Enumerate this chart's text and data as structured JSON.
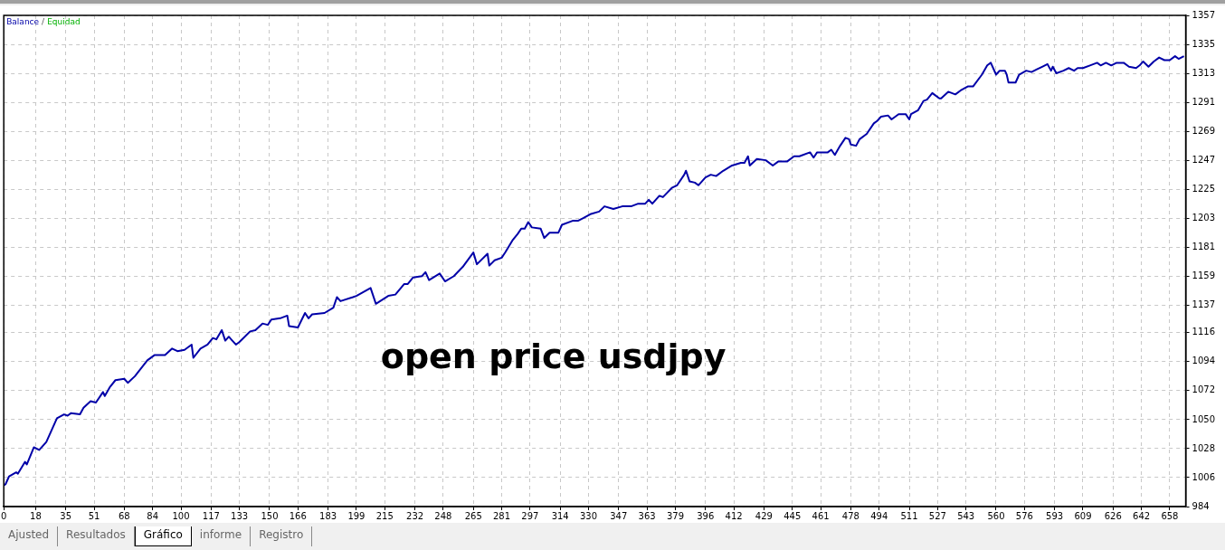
{
  "chart_data": {
    "type": "line",
    "legend": "top left",
    "grid": true,
    "marker": "none",
    "line_style": "solid",
    "xlim": [
      0,
      667
    ],
    "ylim": [
      984,
      1357
    ],
    "xticks": [
      0,
      18,
      35,
      51,
      68,
      84,
      100,
      117,
      133,
      150,
      166,
      183,
      199,
      215,
      232,
      248,
      265,
      281,
      297,
      314,
      330,
      347,
      363,
      379,
      396,
      412,
      429,
      445,
      461,
      478,
      494,
      511,
      527,
      543,
      560,
      576,
      593,
      609,
      626,
      642,
      658
    ],
    "yticks": [
      984,
      1006,
      1028,
      1050,
      1072,
      1094,
      1116,
      1137,
      1159,
      1181,
      1203,
      1225,
      1247,
      1269,
      1291,
      1313,
      1335,
      1357
    ],
    "annotations": [
      "/",
      "Equidad",
      "open price usdjpy",
      "Ajusted",
      "Resultados",
      "Gráfico",
      "informe",
      "Registro"
    ],
    "series": [
      {
        "name": "Balance",
        "color": "#0000a8",
        "x": [
          0,
          1,
          3,
          7,
          8,
          12,
          13,
          17,
          20,
          24,
          30,
          34,
          36,
          38,
          43,
          45,
          49,
          52,
          56,
          57,
          60,
          63,
          68,
          70,
          74,
          81,
          85,
          91,
          95,
          98,
          102,
          106,
          107,
          111,
          115,
          118,
          120,
          123,
          125,
          127,
          129,
          131,
          133,
          139,
          142,
          146,
          149,
          151,
          156,
          160,
          161,
          166,
          170,
          172,
          174,
          181,
          186,
          188,
          190,
          197,
          199,
          207,
          210,
          217,
          221,
          226,
          228,
          231,
          236,
          238,
          240,
          246,
          249,
          254,
          259,
          265,
          267,
          273,
          274,
          277,
          281,
          283,
          287,
          290,
          292,
          294,
          296,
          298,
          303,
          305,
          308,
          313,
          315,
          321,
          324,
          327,
          331,
          336,
          339,
          344,
          349,
          354,
          358,
          362,
          364,
          366,
          370,
          372,
          377,
          380,
          384,
          385,
          387,
          390,
          392,
          396,
          399,
          402,
          406,
          411,
          416,
          418,
          420,
          421,
          425,
          430,
          434,
          437,
          442,
          446,
          449,
          455,
          457,
          459,
          465,
          467,
          469,
          472,
          475,
          477,
          478,
          481,
          483,
          487,
          491,
          493,
          495,
          499,
          501,
          505,
          509,
          511,
          512,
          516,
          519,
          521,
          524,
          525,
          528,
          529,
          533,
          537,
          540,
          544,
          547,
          552,
          555,
          557,
          560,
          562,
          565,
          566,
          567,
          571,
          573,
          577,
          580,
          583,
          586,
          589,
          591,
          592,
          594,
          598,
          601,
          604,
          606,
          609,
          613,
          617,
          619,
          622,
          625,
          628,
          632,
          635,
          639,
          641,
          643,
          646,
          649,
          652,
          655,
          658,
          661,
          663,
          666
        ],
        "values": [
          1000,
          1001,
          1007,
          1010,
          1009,
          1018,
          1016,
          1029,
          1027,
          1033,
          1051,
          1054,
          1053,
          1055,
          1054,
          1059,
          1064,
          1063,
          1071,
          1068,
          1075,
          1080,
          1081,
          1078,
          1083,
          1095,
          1099,
          1099,
          1104,
          1102,
          1103,
          1107,
          1097,
          1104,
          1107,
          1112,
          1111,
          1118,
          1110,
          1113,
          1110,
          1107,
          1109,
          1117,
          1118,
          1123,
          1122,
          1126,
          1127,
          1129,
          1121,
          1120,
          1131,
          1127,
          1130,
          1131,
          1135,
          1143,
          1140,
          1143,
          1144,
          1150,
          1138,
          1144,
          1145,
          1153,
          1153,
          1158,
          1159,
          1162,
          1156,
          1161,
          1155,
          1159,
          1166,
          1177,
          1168,
          1176,
          1167,
          1171,
          1173,
          1177,
          1186,
          1191,
          1195,
          1195,
          1200,
          1196,
          1195,
          1188,
          1192,
          1192,
          1198,
          1201,
          1201,
          1203,
          1206,
          1208,
          1212,
          1210,
          1212,
          1212,
          1214,
          1214,
          1217,
          1214,
          1220,
          1219,
          1226,
          1228,
          1236,
          1239,
          1231,
          1230,
          1228,
          1234,
          1236,
          1235,
          1239,
          1243,
          1245,
          1245,
          1250,
          1243,
          1248,
          1247,
          1243,
          1246,
          1246,
          1250,
          1250,
          1253,
          1249,
          1253,
          1253,
          1255,
          1251,
          1258,
          1264,
          1263,
          1259,
          1258,
          1263,
          1267,
          1275,
          1277,
          1280,
          1281,
          1278,
          1282,
          1282,
          1278,
          1282,
          1285,
          1292,
          1293,
          1298,
          1297,
          1294,
          1294,
          1299,
          1297,
          1300,
          1303,
          1303,
          1312,
          1319,
          1321,
          1312,
          1315,
          1315,
          1312,
          1306,
          1306,
          1312,
          1315,
          1314,
          1316,
          1318,
          1320,
          1315,
          1318,
          1313,
          1315,
          1317,
          1315,
          1317,
          1317,
          1319,
          1321,
          1319,
          1321,
          1319,
          1321,
          1321,
          1318,
          1317,
          1319,
          1322,
          1318,
          1322,
          1325,
          1323,
          1323,
          1326,
          1324,
          1326
        ]
      }
    ]
  }
}
